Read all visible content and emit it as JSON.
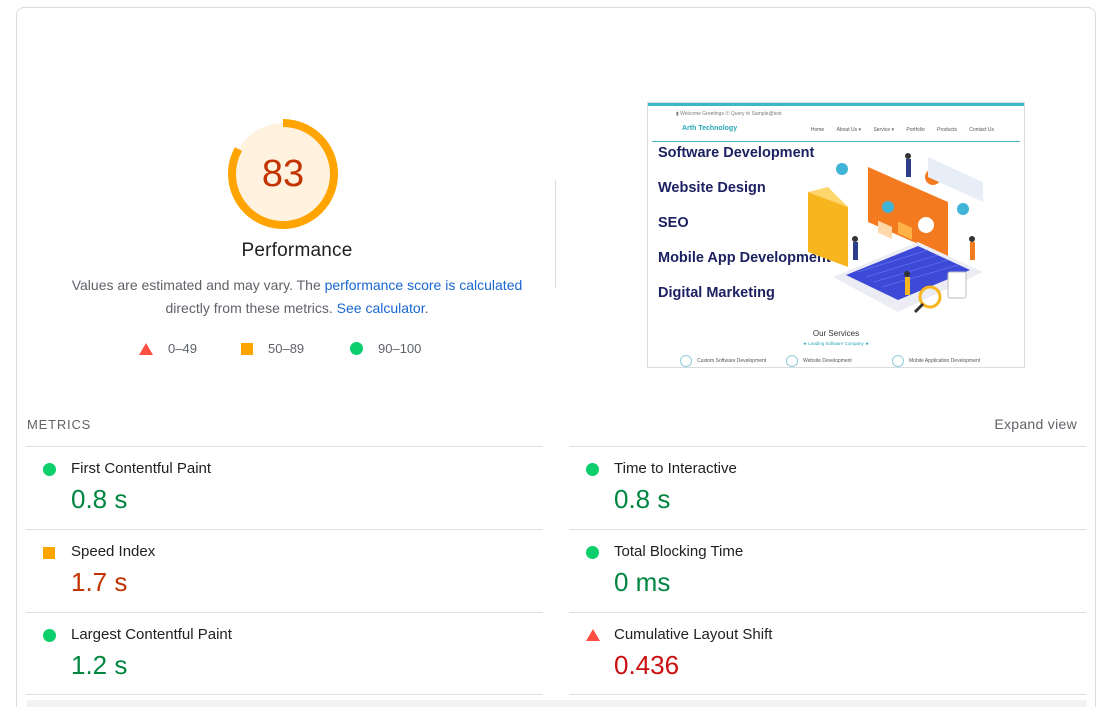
{
  "performance": {
    "score": "83",
    "score_fraction": 0.83,
    "title": "Performance",
    "desc_prefix": "Values are estimated and may vary. The ",
    "desc_link1": "performance score is calculated",
    "desc_middle": "directly from these metrics. ",
    "desc_link2": "See calculator",
    "desc_suffix": "."
  },
  "legend": [
    {
      "label": "0–49",
      "shape": "triangle",
      "color": "#ff4e42"
    },
    {
      "label": "50–89",
      "shape": "square",
      "color": "#ffa400"
    },
    {
      "label": "90–100",
      "shape": "circle",
      "color": "#0cce6b"
    }
  ],
  "screenshot": {
    "info_bar": "▮ Welcome Greetings   ✆ Query   ✉ Sample@test",
    "brand": "Arth Technology",
    "nav": [
      "Home",
      "About Us ▾",
      "Service ▾",
      "Portfolio",
      "Products",
      "Contact Us"
    ],
    "hero_items": [
      "Software Development",
      "Website Design",
      "SEO",
      "Mobile App Development",
      "Digital Marketing"
    ],
    "services_title": "Our Services",
    "services_subtitle": "★ Leading Software Company ★",
    "bottom_items": [
      "Custom Software Development",
      "Website Development",
      "Mobile Application Development"
    ]
  },
  "metrics": {
    "label": "METRICS",
    "expand_label": "Expand view",
    "left": [
      {
        "name": "First Contentful Paint",
        "value": "0.8 s",
        "rating": "green"
      },
      {
        "name": "Speed Index",
        "value": "1.7 s",
        "rating": "orange"
      },
      {
        "name": "Largest Contentful Paint",
        "value": "1.2 s",
        "rating": "green"
      }
    ],
    "right": [
      {
        "name": "Time to Interactive",
        "value": "0.8 s",
        "rating": "green"
      },
      {
        "name": "Total Blocking Time",
        "value": "0 ms",
        "rating": "green"
      },
      {
        "name": "Cumulative Layout Shift",
        "value": "0.436",
        "rating": "red"
      }
    ]
  },
  "colors": {
    "gauge_orange": "#ffa400",
    "gauge_bg": "#fff3e0",
    "score_text": "#c33300",
    "link": "#1967d2"
  }
}
